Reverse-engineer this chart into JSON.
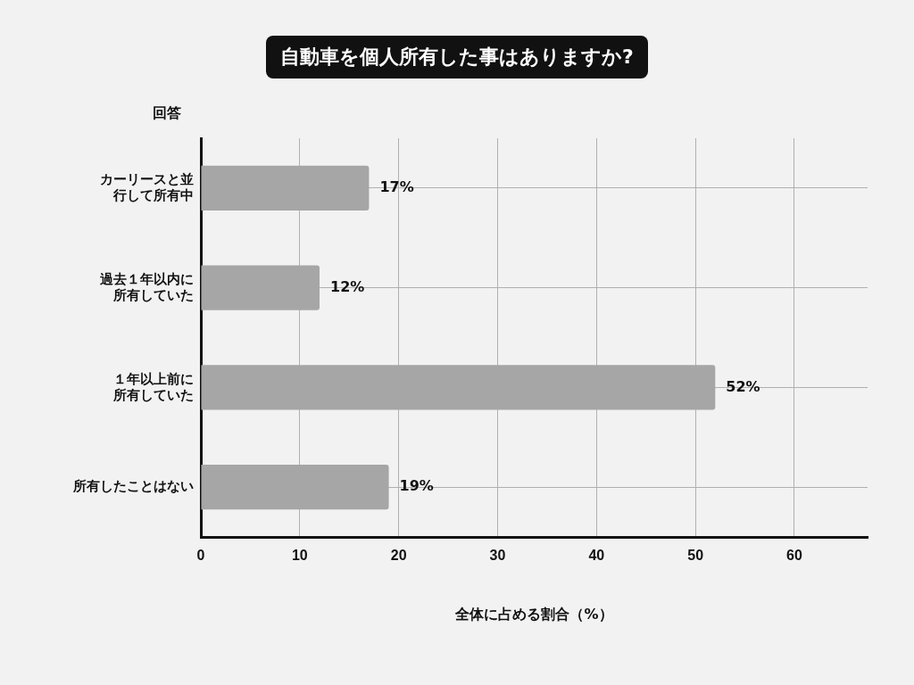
{
  "chart_data": {
    "type": "bar",
    "orientation": "horizontal",
    "title": "自動車を個人所有した事はありますか?",
    "ylabel": "回答",
    "xlabel": "全体に占める割合（%）",
    "categories": [
      "カーリースと並行して所有中",
      "過去１年以内に所有していた",
      "１年以上前に所有していた",
      "所有したことはない"
    ],
    "values": [
      17,
      12,
      52,
      19
    ],
    "value_labels": [
      "17%",
      "12%",
      "52%",
      "19%"
    ],
    "color": "#a6a6a6",
    "xlim": [
      0,
      67.4
    ],
    "xticks": [
      0,
      10,
      20,
      30,
      40,
      50,
      60
    ],
    "grid": true,
    "legend": false
  }
}
